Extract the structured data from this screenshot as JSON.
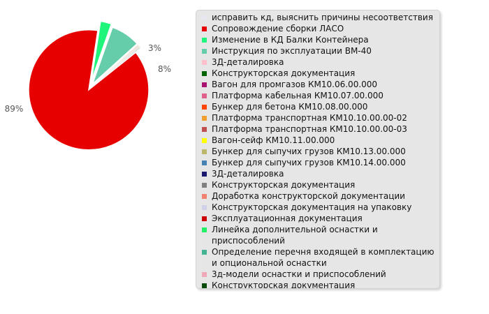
{
  "chart_data": {
    "type": "pie",
    "slices": [
      {
        "label": "исправить кд, выяснить причины несоответствия",
        "value": 0.05,
        "color": "#e9e6f2"
      },
      {
        "label": "Сопровождение сборки ЛАСО",
        "value": 89,
        "color": "#e60000"
      },
      {
        "label": "Изменение в КД Балки Контейнера",
        "value": 3,
        "color": "#1ef57a"
      },
      {
        "label": "Инструкция по эксплуатации ВМ-40",
        "value": 8,
        "color": "#66cdaa"
      },
      {
        "label": "3Д-деталировка",
        "value": 0.05,
        "color": "#ffc0cb"
      },
      {
        "label": "Конструкторская документация",
        "value": 0.05,
        "color": "#006400"
      },
      {
        "label": "Вагон для промгазов  КМ10.06.00.000",
        "value": 0.05,
        "color": "#a8136f"
      },
      {
        "label": "Платформа кабельная КМ10.07.00.000",
        "value": 0.05,
        "color": "#e0608c"
      },
      {
        "label": "Бункер для бетона КМ10.08.00.000",
        "value": 0.05,
        "color": "#ff4500"
      },
      {
        "label": "Платформа транспортная КМ10.10.00.00-02",
        "value": 0.05,
        "color": "#f0a030"
      },
      {
        "label": "Платформа транспортная КМ10.10.00.00-03",
        "value": 0.05,
        "color": "#c05050"
      },
      {
        "label": "Вагон-сейф КМ10.11.00.000",
        "value": 0.05,
        "color": "#ffff00"
      },
      {
        "label": "Бункер для сыпучих грузов КМ10.13.00.000",
        "value": 0.05,
        "color": "#bdb76b"
      },
      {
        "label": "Бункер для сыпучих грузов КМ10.14.00.000",
        "value": 0.05,
        "color": "#4682b4"
      },
      {
        "label": "3Д-деталировка",
        "value": 0.05,
        "color": "#191970"
      },
      {
        "label": "Конструкторская документация",
        "value": 0.05,
        "color": "#808080"
      },
      {
        "label": "Доработка конструкторской документации",
        "value": 0.05,
        "color": "#f08070"
      },
      {
        "label": "Конструкторская документация на упаковку",
        "value": 0.05,
        "color": "#d0d0e8"
      },
      {
        "label": "Эксплуатационная документация",
        "value": 0.05,
        "color": "#cc0000"
      },
      {
        "label": "Линейка дополнительной оснастки и приспособлений",
        "value": 0.05,
        "color": "#22ee66"
      },
      {
        "label": "Определение перечня входящей в комплектацию и опциональной оснастки",
        "value": 0.05,
        "color": "#44b494"
      },
      {
        "label": "3д-модели оснастки и приспособлений",
        "value": 0.05,
        "color": "#f0a8b8"
      },
      {
        "label": "Конструкторская документация",
        "value": 0.05,
        "color": "#0a4a0a"
      }
    ],
    "data_labels": [
      "89%",
      "3%",
      "8%"
    ],
    "legend_position": "right"
  }
}
